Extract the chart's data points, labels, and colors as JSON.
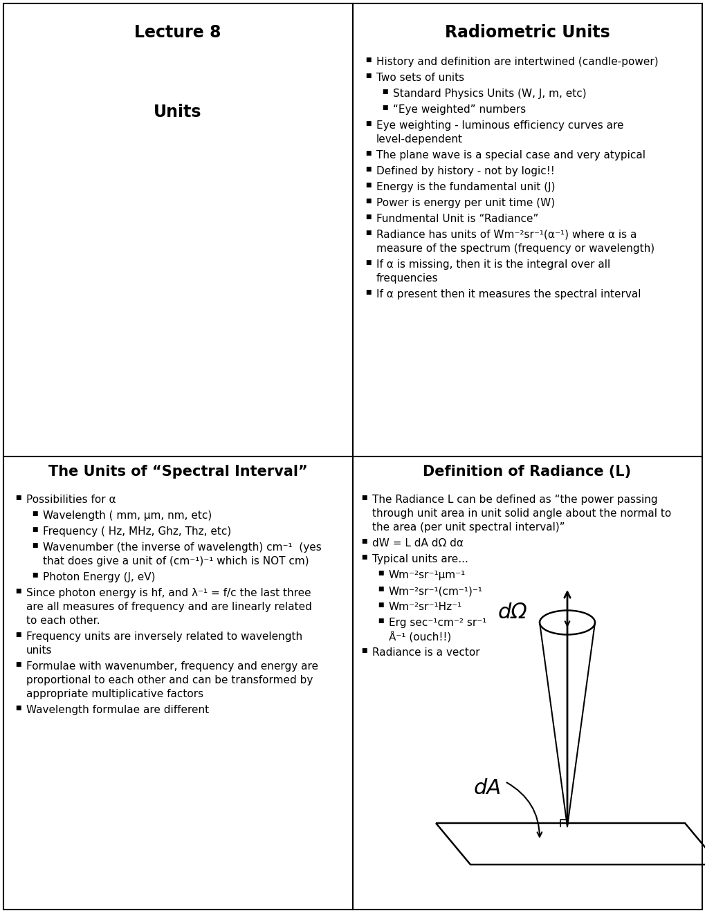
{
  "bg_color": "#ffffff",
  "border_color": "#000000",
  "text_color": "#000000",
  "top_left_title": "Lecture 8",
  "top_left_subtitle": "Units",
  "top_right_title": "Radiometric Units",
  "top_right_bullets": [
    [
      "History and definition are intertwined (candle-power)",
      0
    ],
    [
      "Two sets of units",
      0
    ],
    [
      "Standard Physics Units (W, J, m, etc)",
      1
    ],
    [
      "“Eye weighted” numbers",
      1
    ],
    [
      "Eye weighting - luminous efficiency curves are\nlevel-dependent",
      0
    ],
    [
      "The plane wave is a special case and very atypical",
      0
    ],
    [
      "Defined by history - not by logic!!",
      0
    ],
    [
      "Energy is the fundamental unit (J)",
      0
    ],
    [
      "Power is energy per unit time (W)",
      0
    ],
    [
      "Fundmental Unit is “Radiance”",
      0
    ],
    [
      "Radiance has units of Wm⁻²sr⁻¹(α⁻¹) where α is a\nmeasure of the spectrum (frequency or wavelength)",
      0
    ],
    [
      "If α is missing, then it is the integral over all\nfrequencies",
      0
    ],
    [
      "If α present then it measures the spectral interval",
      0
    ]
  ],
  "bottom_left_title": "The Units of “Spectral Interval”",
  "bottom_left_bullets": [
    [
      "Possibilities for α",
      0
    ],
    [
      "Wavelength ( mm, μm, nm, etc)",
      1
    ],
    [
      "Frequency ( Hz, MHz, Ghz, Thz, etc)",
      1
    ],
    [
      "Wavenumber (the inverse of wavelength) cm⁻¹  (yes\nthat does give a unit of (cm⁻¹)⁻¹ which is NOT cm)",
      1
    ],
    [
      "Photon Energy (J, eV)",
      1
    ],
    [
      "Since photon energy is hf, and λ⁻¹ = f/c the last three\nare all measures of frequency and are linearly related\nto each other.",
      0
    ],
    [
      "Frequency units are inversely related to wavelength\nunits",
      0
    ],
    [
      "Formulae with wavenumber, frequency and energy are\nproportional to each other and can be transformed by\nappropriate multiplicative factors",
      0
    ],
    [
      "Wavelength formulae are different",
      0
    ]
  ],
  "bottom_right_title": "Definition of Radiance (L)",
  "bottom_right_bullets": [
    [
      "The Radiance L can be defined as “the power passing\nthrough unit area in unit solid angle about the normal to\nthe area (per unit spectral interval)”",
      0
    ],
    [
      "dW = L dA dΩ dα",
      0
    ],
    [
      "Typical units are...",
      0
    ],
    [
      "Wm⁻²sr⁻¹μm⁻¹",
      1
    ],
    [
      "Wm⁻²sr⁻¹(cm⁻¹)⁻¹",
      1
    ],
    [
      "Wm⁻²sr⁻¹Hz⁻¹",
      1
    ],
    [
      "Erg sec⁻¹cm⁻² sr⁻¹\nÅ⁻¹ (ouch!!)",
      1
    ],
    [
      "Radiance is a vector",
      0
    ]
  ]
}
